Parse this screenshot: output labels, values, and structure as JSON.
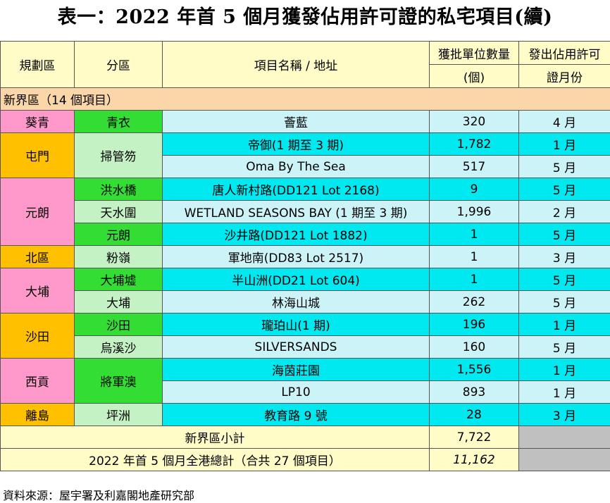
{
  "title": "表一：2022 年首 5 個月獲發佔用許可證的私宅項目(續)",
  "headers": {
    "district": "規劃區",
    "subdistrict": "分區",
    "project": "項目名稱 / 地址",
    "units_line1": "獲批單位數量",
    "units_line2": "(個)",
    "month_line1": "發出佔用許可",
    "month_line2": "證月份"
  },
  "section_label": "新界區（14 個項目）",
  "districts": [
    "葵青",
    "屯門",
    "元朗",
    "北區",
    "大埔",
    "沙田",
    "西貢",
    "離島"
  ],
  "subdistricts": [
    "青衣",
    "掃管笏",
    "洪水橋",
    "天水圍",
    "元朗",
    "粉嶺",
    "大埔墟",
    "大埔",
    "沙田",
    "烏溪沙",
    "將軍澳",
    "坪洲"
  ],
  "rows": [
    {
      "project": "薈藍",
      "units": "320",
      "month": "4 月"
    },
    {
      "project": "帝御(1 期至 3 期)",
      "units": "1,782",
      "month": "1 月"
    },
    {
      "project": "Oma By The Sea",
      "units": "517",
      "month": "5 月"
    },
    {
      "project": "唐人新村路(DD121 Lot 2168)",
      "units": "9",
      "month": "5 月"
    },
    {
      "project": "WETLAND SEASONS BAY (1 期至 3 期)",
      "units": "1,996",
      "month": "2 月"
    },
    {
      "project": "沙井路(DD121 Lot 1882)",
      "units": "1",
      "month": "5 月"
    },
    {
      "project": "軍地南(DD83 Lot 2517)",
      "units": "1",
      "month": "3 月"
    },
    {
      "project": "半山洲(DD21 Lot 604)",
      "units": "1",
      "month": "5 月"
    },
    {
      "project": "林海山城",
      "units": "262",
      "month": "5 月"
    },
    {
      "project": "瓏珀山(1 期)",
      "units": "196",
      "month": "1 月"
    },
    {
      "project": "SILVERSANDS",
      "units": "160",
      "month": "5 月"
    },
    {
      "project": "海茵莊園",
      "units": "1,556",
      "month": "1 月"
    },
    {
      "project": "LP10",
      "units": "893",
      "month": "1 月"
    },
    {
      "project": "教育路 9 號",
      "units": "28",
      "month": "3 月"
    }
  ],
  "subtotal": {
    "label": "新界區小計",
    "value": "7,722"
  },
  "total": {
    "label": "2022 年首 5 個月全港總計（合共 27 個項目）",
    "value": "11,162"
  },
  "source": "資料來源：屋宇署及利嘉閣地產研究部",
  "colors": {
    "header_bg": "#fffcc8",
    "section_bg": "#fbd6a9",
    "district_pink": "#ff99cc",
    "district_orange": "#ffc000",
    "sub_green": "#33dd33",
    "sub_lightgreen": "#c4f2c4",
    "row_cyan": "#00e8f0",
    "row_lightcyan": "#ccf4f8",
    "empty_grey": "#c0c0c0"
  }
}
